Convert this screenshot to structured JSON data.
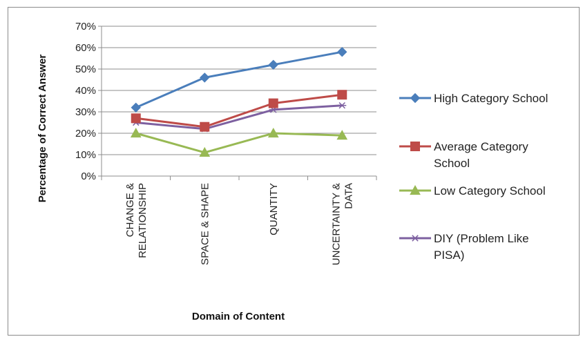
{
  "chart_data": {
    "type": "line",
    "title": "",
    "xlabel": "Domain of Content",
    "ylabel": "Percentage of Correct Answer",
    "ylim": [
      0,
      70
    ],
    "yticks": [
      "0%",
      "10%",
      "20%",
      "30%",
      "40%",
      "50%",
      "60%",
      "70%"
    ],
    "categories": [
      [
        "CHANGE &",
        "RELATIONSHIP"
      ],
      [
        "SPACE & SHAPE"
      ],
      [
        "QUANTITY"
      ],
      [
        "UNCERTAINTY &",
        "DATA"
      ]
    ],
    "grid": true,
    "legend_position": "right",
    "series": [
      {
        "name": [
          "High Category School"
        ],
        "values": [
          32,
          46,
          52,
          58
        ],
        "color": "#4a7ebb",
        "marker": "diamond"
      },
      {
        "name": [
          "Average Category",
          "School"
        ],
        "values": [
          27,
          23,
          34,
          38
        ],
        "color": "#be4b48",
        "marker": "square"
      },
      {
        "name": [
          "Low Category School"
        ],
        "values": [
          20,
          11,
          20,
          19
        ],
        "color": "#98b954",
        "marker": "triangle"
      },
      {
        "name": [
          "DIY (Problem Like",
          "PISA)"
        ],
        "values": [
          25,
          22,
          31,
          33
        ],
        "color": "#7d60a0",
        "marker": "star"
      }
    ]
  }
}
